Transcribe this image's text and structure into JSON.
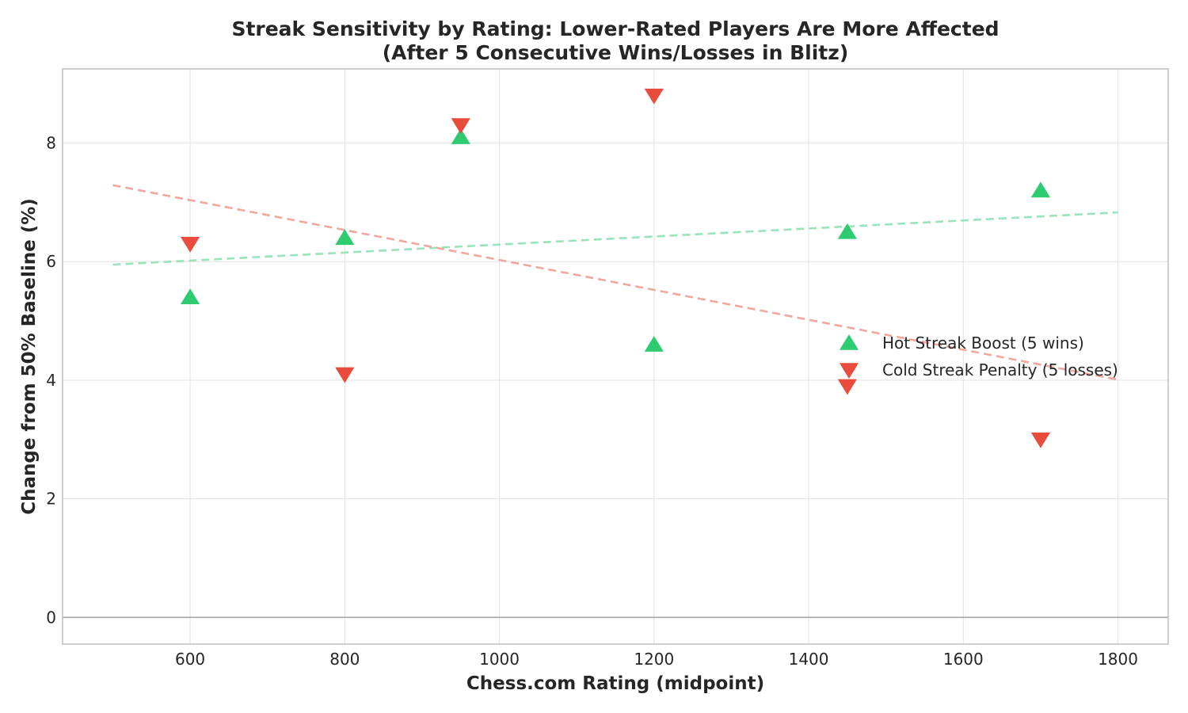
{
  "chart_data": {
    "type": "scatter",
    "title": "Streak Sensitivity by Rating: Lower-Rated Players Are More Affected",
    "subtitle": "(After 5 Consecutive Wins/Losses in Blitz)",
    "xlabel": "Chess.com Rating (midpoint)",
    "ylabel": "Change from 50% Baseline (%)",
    "xlim": [
      435,
      1865
    ],
    "ylim": [
      -0.45,
      9.25
    ],
    "xticks": [
      600,
      800,
      1000,
      1200,
      1400,
      1600,
      1800
    ],
    "yticks": [
      0,
      2,
      4,
      6,
      8
    ],
    "grid": true,
    "reference_line_y": 0,
    "legend_position": "center-right",
    "series": [
      {
        "name": "Hot Streak Boost (5 wins)",
        "marker": "triangle-up",
        "color": "#2ecc71",
        "x": [
          600,
          800,
          950,
          1200,
          1450,
          1700
        ],
        "y": [
          5.4,
          6.4,
          8.1,
          4.6,
          6.5,
          7.2
        ],
        "trend": {
          "x": [
            500,
            1800
          ],
          "y": [
            5.95,
            6.83
          ],
          "color": "#9be3b8"
        }
      },
      {
        "name": "Cold Streak Penalty (5 losses)",
        "marker": "triangle-down",
        "color": "#e74c3c",
        "x": [
          600,
          800,
          950,
          1200,
          1450,
          1700
        ],
        "y": [
          6.3,
          4.1,
          8.3,
          8.8,
          3.9,
          3.0
        ],
        "trend": {
          "x": [
            500,
            1800
          ],
          "y": [
            7.29,
            4.01
          ],
          "color": "#f0a79e"
        }
      }
    ]
  }
}
